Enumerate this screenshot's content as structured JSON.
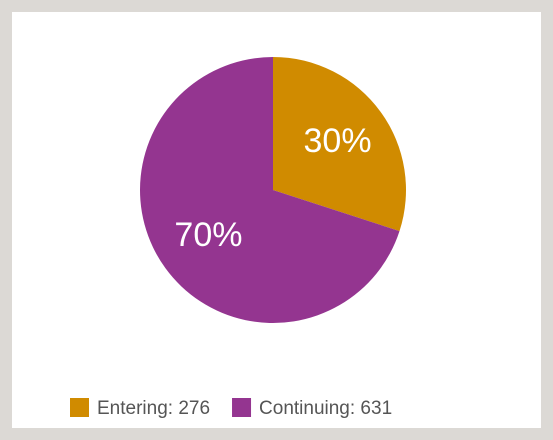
{
  "chart_data": {
    "type": "pie",
    "categories": [
      "Entering: 276",
      "Continuing: 631"
    ],
    "values": [
      30,
      70
    ],
    "value_labels": [
      "30%",
      "70%"
    ],
    "colors": [
      "#d08b00",
      "#943590"
    ],
    "legend": "bottom"
  }
}
